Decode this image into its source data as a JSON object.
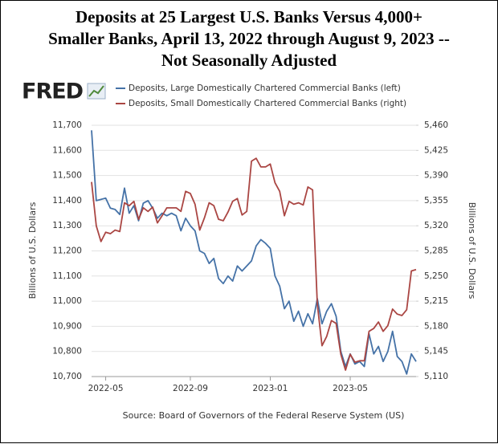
{
  "chart_data": {
    "type": "line",
    "title": [
      "Deposits at 25 Largest U.S. Banks Versus 4,000+",
      "Smaller Banks, April 13, 2022 through August 9, 2023 --",
      "Not Seasonally Adjusted"
    ],
    "logo": "FRED",
    "ylabel": "Billions of U.S. Dollars",
    "y2label": "Billions of U.S. Dollars",
    "source": "Source: Board of Governors of the Federal Reserve System (US)",
    "x": [
      "2022-04",
      "2022-04",
      "2022-04",
      "2022-05",
      "2022-05",
      "2022-05",
      "2022-05",
      "2022-06",
      "2022-06",
      "2022-06",
      "2022-06",
      "2022-06",
      "2022-07",
      "2022-07",
      "2022-07",
      "2022-07",
      "2022-08",
      "2022-08",
      "2022-08",
      "2022-08",
      "2022-08",
      "2022-09",
      "2022-09",
      "2022-09",
      "2022-09",
      "2022-10",
      "2022-10",
      "2022-10",
      "2022-10",
      "2022-11",
      "2022-11",
      "2022-11",
      "2022-11",
      "2022-11",
      "2022-12",
      "2022-12",
      "2022-12",
      "2022-12",
      "2023-01",
      "2023-01",
      "2023-01",
      "2023-01",
      "2023-02",
      "2023-02",
      "2023-02",
      "2023-02",
      "2023-03",
      "2023-03",
      "2023-03",
      "2023-03",
      "2023-03",
      "2023-04",
      "2023-04",
      "2023-04",
      "2023-04",
      "2023-05",
      "2023-05",
      "2023-05",
      "2023-05",
      "2023-05",
      "2023-06",
      "2023-06",
      "2023-06",
      "2023-06",
      "2023-07",
      "2023-07",
      "2023-07",
      "2023-07",
      "2023-08",
      "2023-08"
    ],
    "xticks": [
      "2022-05",
      "2022-09",
      "2023-01",
      "2023-05"
    ],
    "ylim": [
      10700,
      11700
    ],
    "yticks": [
      {
        "value": 10700,
        "label": "10,700"
      },
      {
        "value": 10800,
        "label": "10,800"
      },
      {
        "value": 10900,
        "label": "10,900"
      },
      {
        "value": 11000,
        "label": "11,000"
      },
      {
        "value": 11100,
        "label": "11,100"
      },
      {
        "value": 11200,
        "label": "11,200"
      },
      {
        "value": 11300,
        "label": "11,300"
      },
      {
        "value": 11400,
        "label": "11,400"
      },
      {
        "value": 11500,
        "label": "11,500"
      },
      {
        "value": 11600,
        "label": "11,600"
      },
      {
        "value": 11700,
        "label": "11,700"
      }
    ],
    "y2lim": [
      5110,
      5460
    ],
    "y2ticks": [
      {
        "value": 5110,
        "label": "5,110"
      },
      {
        "value": 5145,
        "label": "5,145"
      },
      {
        "value": 5180,
        "label": "5,180"
      },
      {
        "value": 5215,
        "label": "5,215"
      },
      {
        "value": 5250,
        "label": "5,250"
      },
      {
        "value": 5285,
        "label": "5,285"
      },
      {
        "value": 5320,
        "label": "5,320"
      },
      {
        "value": 5355,
        "label": "5,355"
      },
      {
        "value": 5390,
        "label": "5,390"
      },
      {
        "value": 5425,
        "label": "5,425"
      },
      {
        "value": 5460,
        "label": "5,460"
      }
    ],
    "grid": true,
    "series": [
      {
        "name": "Deposits, Large Domestically Chartered Commercial Banks (left)",
        "color": "#4572a7",
        "axis": "y",
        "values": [
          11680,
          11400,
          11405,
          11410,
          11370,
          11365,
          11345,
          11450,
          11350,
          11380,
          11320,
          11390,
          11400,
          11370,
          11330,
          11350,
          11340,
          11350,
          11340,
          11280,
          11330,
          11300,
          11280,
          11200,
          11190,
          11150,
          11170,
          11090,
          11070,
          11100,
          11080,
          11140,
          11120,
          11140,
          11160,
          11220,
          11245,
          11230,
          11210,
          11100,
          11060,
          10970,
          11000,
          10920,
          10960,
          10900,
          10950,
          10910,
          11010,
          10910,
          10960,
          10990,
          10940,
          10800,
          10740,
          10790,
          10750,
          10760,
          10740,
          10870,
          10790,
          10820,
          10760,
          10800,
          10880,
          10780,
          10760,
          10710,
          10790,
          10760
        ]
      },
      {
        "name": "Deposits, Small Domestically Chartered Commercial Banks (right)",
        "color": "#aa4643",
        "axis": "y2",
        "values": [
          5381,
          5320,
          5298,
          5311,
          5309,
          5314,
          5312,
          5352,
          5348,
          5354,
          5329,
          5345,
          5340,
          5346,
          5324,
          5334,
          5345,
          5345,
          5345,
          5340,
          5368,
          5365,
          5350,
          5314,
          5331,
          5352,
          5348,
          5329,
          5327,
          5339,
          5354,
          5358,
          5335,
          5340,
          5410,
          5414,
          5402,
          5402,
          5406,
          5380,
          5368,
          5334,
          5354,
          5350,
          5352,
          5349,
          5374,
          5370,
          5211,
          5153,
          5166,
          5188,
          5184,
          5141,
          5119,
          5141,
          5130,
          5132,
          5132,
          5173,
          5177,
          5186,
          5173,
          5181,
          5204,
          5197,
          5195,
          5203,
          5257,
          5259
        ]
      }
    ]
  }
}
